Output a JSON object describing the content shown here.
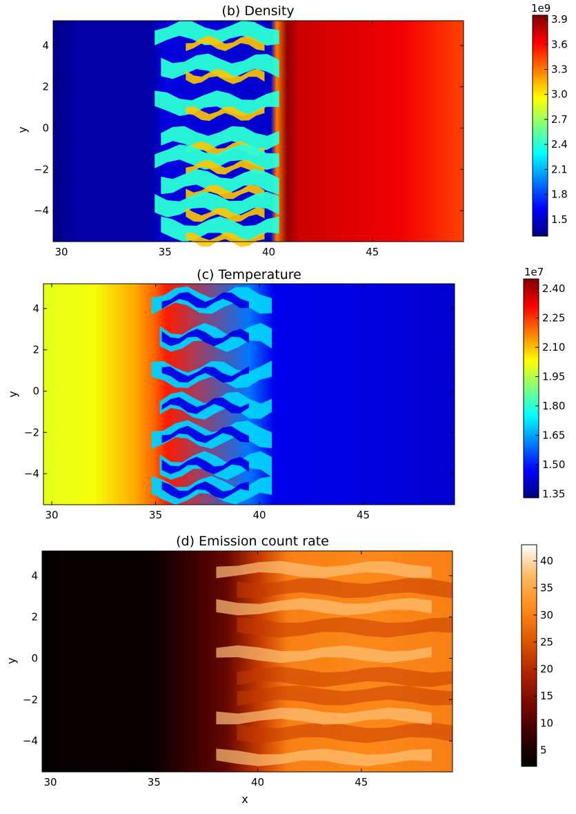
{
  "chart_data": [
    {
      "type": "heatmap",
      "title": "(b) Density",
      "xlabel": "",
      "ylabel": "y",
      "xlim": [
        29.6,
        49.4
      ],
      "ylim": [
        -5.5,
        5.2
      ],
      "xticks": [
        "30",
        "35",
        "40",
        "45"
      ],
      "yticks": [
        "4",
        "2",
        "0",
        "−2",
        "−4"
      ],
      "colormap": "jet",
      "colorbar": {
        "exponent_label": "1e9",
        "range": [
          1.3,
          3.95
        ],
        "ticks": [
          "1.5",
          "1.8",
          "2.1",
          "2.4",
          "2.7",
          "3.0",
          "3.3",
          "3.6",
          "3.9"
        ]
      },
      "regions": {
        "uniform_low_value": 1.4,
        "mixing_zone_x": [
          35,
          41
        ],
        "uniform_high_value": 3.7,
        "high_region_peak_near_x": 40.5
      }
    },
    {
      "type": "heatmap",
      "title": "(c) Temperature",
      "xlabel": "",
      "ylabel": "y",
      "xlim": [
        29.6,
        49.4
      ],
      "ylim": [
        -5.5,
        5.2
      ],
      "xticks": [
        "30",
        "35",
        "40",
        "45"
      ],
      "yticks": [
        "4",
        "2",
        "0",
        "−2",
        "−4"
      ],
      "colormap": "jet",
      "colorbar": {
        "exponent_label": "1e7",
        "range": [
          1.33,
          2.45
        ],
        "ticks": [
          "1.35",
          "1.50",
          "1.65",
          "1.80",
          "1.95",
          "2.10",
          "2.25",
          "2.40"
        ]
      },
      "regions": {
        "hot_side_value": 2.0,
        "mixing_zone_x": [
          34.5,
          41
        ],
        "cold_side_value": 1.42
      }
    },
    {
      "type": "heatmap",
      "title": "(d)  Emission count rate",
      "xlabel": "x",
      "ylabel": "y",
      "xlim": [
        29.6,
        49.4
      ],
      "ylim": [
        -5.5,
        5.2
      ],
      "xticks": [
        "30",
        "35",
        "40",
        "45"
      ],
      "yticks": [
        "4",
        "2",
        "0",
        "−2",
        "−4"
      ],
      "colormap": "gist_heat",
      "colorbar": {
        "exponent_label": "",
        "range": [
          2,
          43
        ],
        "ticks": [
          "5",
          "10",
          "15",
          "20",
          "25",
          "30",
          "35",
          "40"
        ]
      },
      "regions": {
        "dark_side_value": 3,
        "mixing_zone_x": [
          35,
          41
        ],
        "bright_side_value": 31,
        "bright_streaks_y": [
          4.3,
          2.5,
          0.2,
          -2.8,
          -4.8
        ]
      }
    }
  ]
}
